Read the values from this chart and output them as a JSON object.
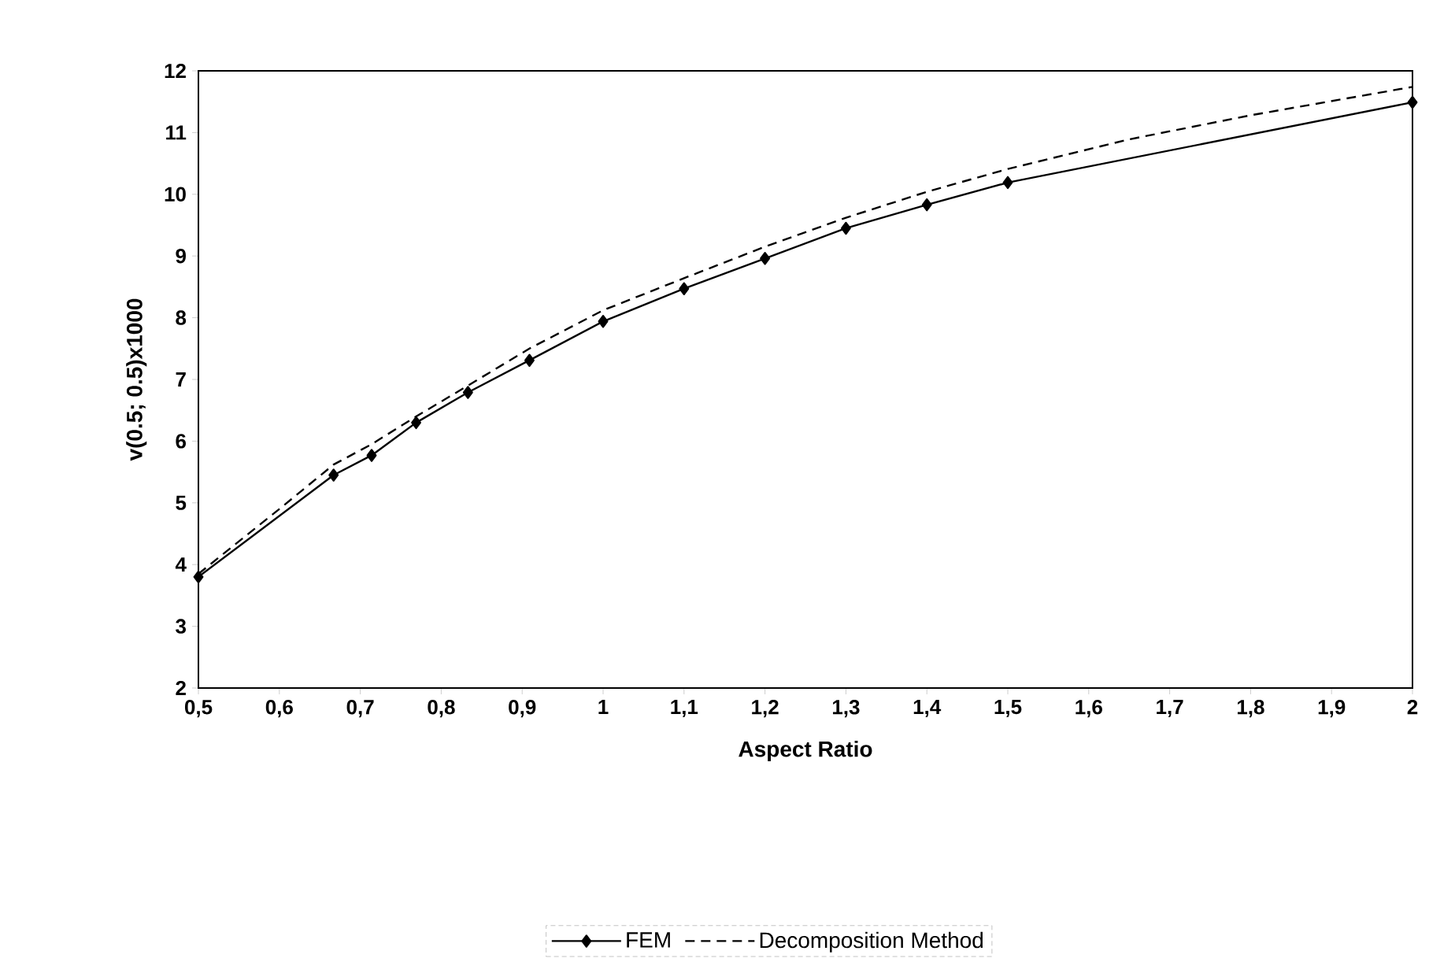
{
  "chart_data": {
    "type": "line",
    "xlabel": "Aspect Ratio",
    "ylabel": "v(0.5; 0.5)x1000",
    "xlim": [
      0.5,
      2
    ],
    "ylim": [
      2,
      12
    ],
    "xticks": [
      {
        "value": 0.5,
        "label": "0,5"
      },
      {
        "value": 0.6,
        "label": "0,6"
      },
      {
        "value": 0.7,
        "label": "0,7"
      },
      {
        "value": 0.8,
        "label": "0,8"
      },
      {
        "value": 0.9,
        "label": "0,9"
      },
      {
        "value": 1,
        "label": "1"
      },
      {
        "value": 1.1,
        "label": "1,1"
      },
      {
        "value": 1.2,
        "label": "1,2"
      },
      {
        "value": 1.3,
        "label": "1,3"
      },
      {
        "value": 1.4,
        "label": "1,4"
      },
      {
        "value": 1.5,
        "label": "1,5"
      },
      {
        "value": 1.6,
        "label": "1,6"
      },
      {
        "value": 1.7,
        "label": "1,7"
      },
      {
        "value": 1.8,
        "label": "1,8"
      },
      {
        "value": 1.9,
        "label": "1,9"
      },
      {
        "value": 2,
        "label": "2"
      }
    ],
    "yticks": [
      2,
      3,
      4,
      5,
      6,
      7,
      8,
      9,
      10,
      11,
      12
    ],
    "grid": false,
    "legend": "bottom",
    "series": [
      {
        "name": "FEM",
        "color": "#000000",
        "marker": "diamond",
        "line_style": "solid",
        "x": [
          0.5,
          0.667,
          0.714,
          0.769,
          0.833,
          0.909,
          1,
          1.1,
          1.2,
          1.3,
          1.4,
          1.5,
          2
        ],
        "values": [
          3.8,
          5.45,
          5.77,
          6.3,
          6.79,
          7.31,
          7.94,
          8.47,
          8.96,
          9.45,
          9.83,
          10.19,
          11.49
        ]
      },
      {
        "name": "Decomposition Method",
        "color": "#000000",
        "marker": "none",
        "line_style": "dashed",
        "x": [
          0.5,
          0.6,
          0.667,
          0.714,
          0.769,
          0.833,
          0.909,
          1,
          1.1,
          1.2,
          1.3,
          1.4,
          1.5,
          1.65,
          1.8,
          2
        ],
        "values": [
          3.85,
          4.9,
          5.62,
          5.95,
          6.4,
          6.9,
          7.5,
          8.12,
          8.64,
          9.15,
          9.62,
          10.04,
          10.41,
          10.89,
          11.28,
          11.74
        ]
      }
    ]
  }
}
